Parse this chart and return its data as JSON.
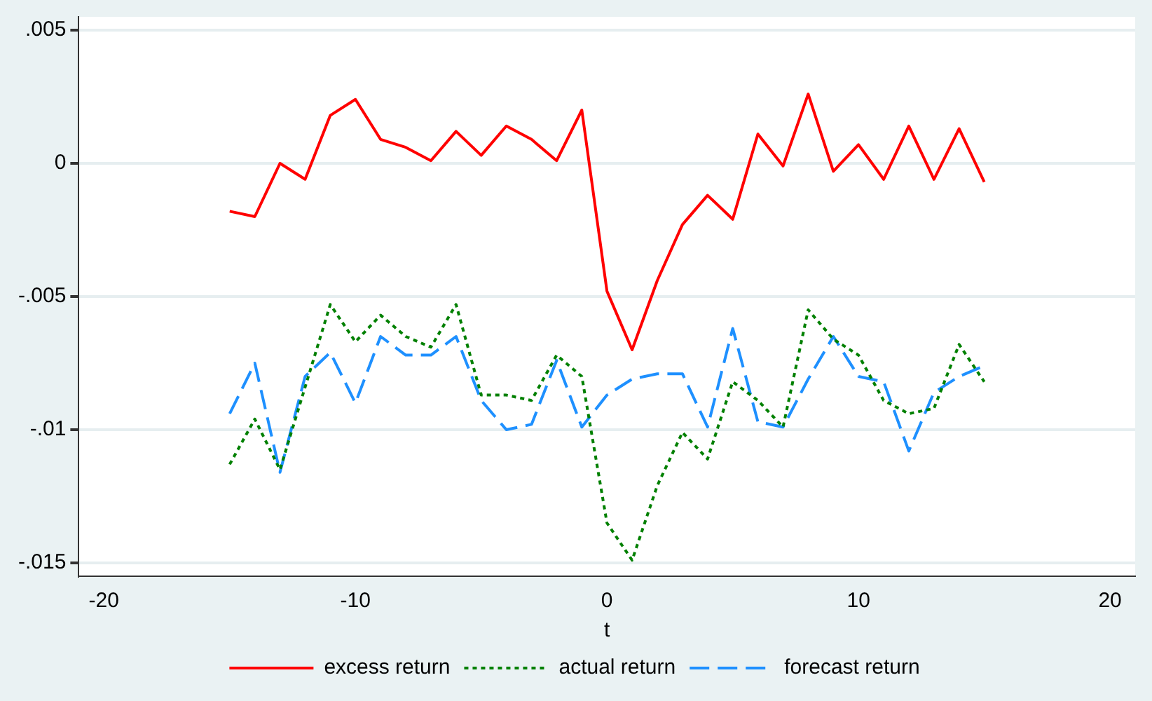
{
  "chart_data": {
    "type": "line",
    "xlabel": "t",
    "x": [
      -15,
      -14,
      -13,
      -12,
      -11,
      -10,
      -9,
      -8,
      -7,
      -6,
      -5,
      -4,
      -3,
      -2,
      -1,
      0,
      1,
      2,
      3,
      4,
      5,
      6,
      7,
      8,
      9,
      10,
      11,
      12,
      13,
      14,
      15
    ],
    "series": [
      {
        "name": "excess return",
        "color": "#ff0000",
        "line_style": "solid",
        "values": [
          -0.0018,
          -0.002,
          0.0,
          -0.0006,
          0.0018,
          0.0024,
          0.0009,
          0.0006,
          0.0001,
          0.0012,
          0.0003,
          0.0014,
          0.0009,
          0.0001,
          0.002,
          -0.0048,
          -0.007,
          -0.0044,
          -0.0023,
          -0.0012,
          -0.0021,
          0.0011,
          -0.0001,
          0.0026,
          -0.0003,
          0.0007,
          -0.0006,
          0.0014,
          -0.0006,
          0.0013,
          -0.0007
        ]
      },
      {
        "name": "actual return",
        "color": "#008000",
        "line_style": "dotted",
        "values": [
          -0.0113,
          -0.0096,
          -0.0115,
          -0.0084,
          -0.0053,
          -0.0067,
          -0.0057,
          -0.0065,
          -0.0069,
          -0.0053,
          -0.0087,
          -0.0087,
          -0.0089,
          -0.0072,
          -0.008,
          -0.0135,
          -0.0149,
          -0.0121,
          -0.0101,
          -0.0111,
          -0.0082,
          -0.0089,
          -0.0099,
          -0.0055,
          -0.0066,
          -0.0072,
          -0.0089,
          -0.0094,
          -0.0092,
          -0.0068,
          -0.0082
        ]
      },
      {
        "name": "forecast return",
        "color": "#1e90ff",
        "line_style": "dashed",
        "values": [
          -0.0094,
          -0.0075,
          -0.0116,
          -0.008,
          -0.0071,
          -0.009,
          -0.0065,
          -0.0072,
          -0.0072,
          -0.0065,
          -0.0089,
          -0.01,
          -0.0098,
          -0.0074,
          -0.0099,
          -0.0087,
          -0.0081,
          -0.0079,
          -0.0079,
          -0.0099,
          -0.0062,
          -0.0097,
          -0.0099,
          -0.0081,
          -0.0065,
          -0.008,
          -0.0082,
          -0.0108,
          -0.0086,
          -0.008,
          -0.0076
        ]
      }
    ],
    "xlim": [
      -21,
      21
    ],
    "xticks": [
      -20,
      -10,
      0,
      10,
      20
    ],
    "ylim": [
      -0.0155,
      0.0055
    ],
    "yticks": [
      {
        "value": 0.005,
        "label": ".005"
      },
      {
        "value": 0,
        "label": "0"
      },
      {
        "value": -0.005,
        "label": "-.005"
      },
      {
        "value": -0.01,
        "label": "-.01"
      },
      {
        "value": -0.015,
        "label": "-.015"
      }
    ],
    "grid": "y",
    "legend": "bottom",
    "marker": "none"
  }
}
